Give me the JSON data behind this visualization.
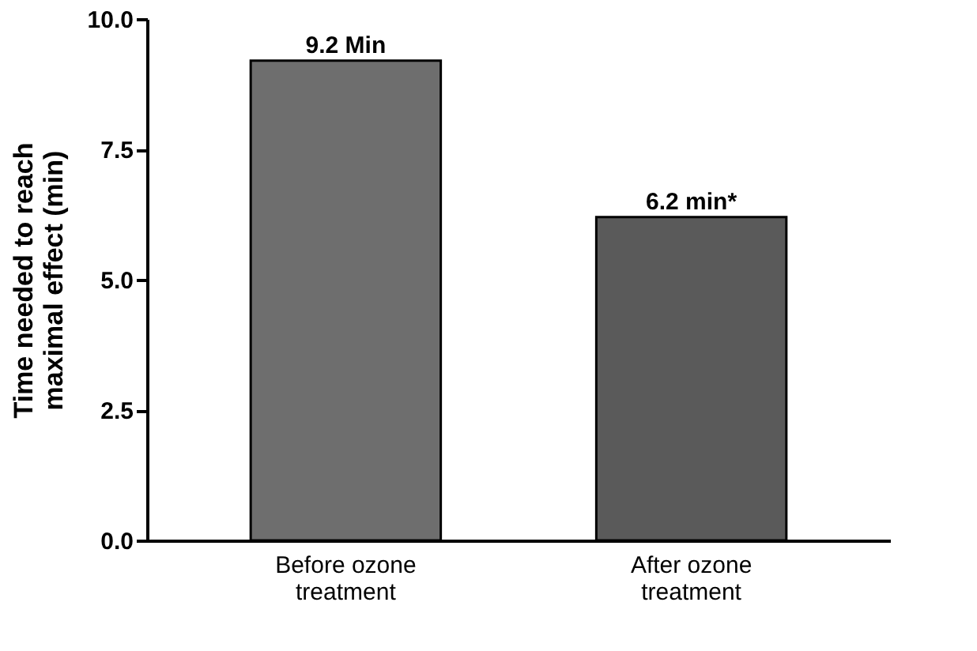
{
  "chart_data": {
    "type": "bar",
    "ylabel": "Time needed to reach maximal effect (min)",
    "categories": [
      "Before ozone treatment",
      "After ozone treatment"
    ],
    "values": [
      9.2,
      6.2
    ],
    "colors": [
      "#6e6e6e",
      "#5a5a5a"
    ],
    "value_labels": [
      "9.2 Min",
      "6.2 min*"
    ],
    "ylim": [
      0,
      10
    ],
    "yticks": [
      {
        "value": 0,
        "label": "0.0"
      },
      {
        "value": 2.5,
        "label": "2.5"
      },
      {
        "value": 5,
        "label": "5.0"
      },
      {
        "value": 7.5,
        "label": "7.5"
      },
      {
        "value": 10,
        "label": "10.0"
      }
    ],
    "grid": false
  }
}
